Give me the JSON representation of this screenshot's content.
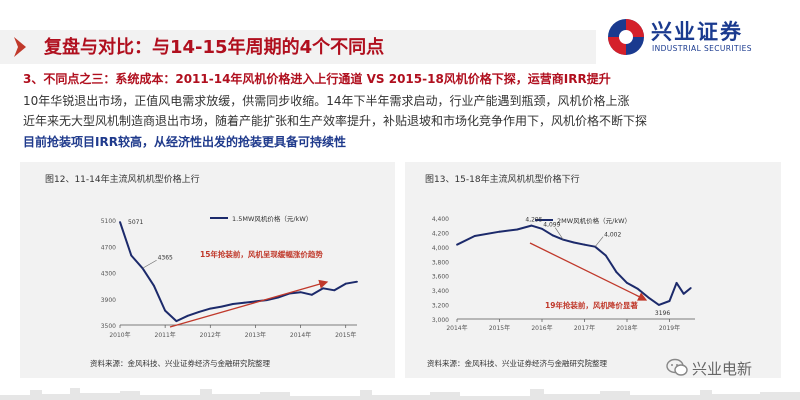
{
  "header": {
    "title": "复盘与对比：与14-15年周期的4个不同点"
  },
  "logo": {
    "name": "兴业证券",
    "english": "INDUSTRIAL SECURITIES"
  },
  "body": {
    "heading": "3、不同点之三：系统成本：2011-14年风机价格进入上行通道 VS 2015-18风机价格下探，运营商IRR提升",
    "line1": "10年华锐退出市场，正值风电需求放缓，供需同步收缩。14年下半年需求启动，行业产能遇到瓶颈，风机价格上涨",
    "line2": "近年来无大型风机制造商退出市场，随着产能扩张和生产效率提升，补贴退坡和市场化竞争作用下，风机价格不断下探",
    "line3": "目前抢装项目IRR较高，从经济性出发的抢装更具备可持续性"
  },
  "watermark": {
    "name": "兴业电新"
  },
  "colors": {
    "brand_red": "#b00f1e",
    "brand_blue": "#1f3a8c",
    "line_navy": "#1c2a6b",
    "annotation_red": "#c0392b",
    "chart_bg": "#f2f2f2"
  },
  "chart_data": [
    {
      "type": "line",
      "title": "图12、11-14年主流风机机型价格上行",
      "source": "资料来源：金风科技、兴业证券经济与金融研究院整理",
      "series": [
        {
          "name": "1.5MW风机价格（元/kW）",
          "x": [
            "2010-01",
            "2010-04",
            "2010-07",
            "2010-10",
            "2011-01",
            "2011-04",
            "2011-07",
            "2011-10",
            "2012-01",
            "2012-04",
            "2012-07",
            "2012-10",
            "2013-01",
            "2013-04",
            "2013-07",
            "2013-10",
            "2014-01",
            "2014-04",
            "2014-07",
            "2014-10",
            "2015-01",
            "2015-04"
          ],
          "values": [
            5071,
            4560,
            4365,
            4100,
            3720,
            3560,
            3640,
            3700,
            3750,
            3780,
            3820,
            3840,
            3860,
            3880,
            3920,
            3980,
            4000,
            3960,
            4060,
            4030,
            4130,
            4160
          ]
        }
      ],
      "xlabels": [
        "2010年",
        "2011年",
        "2012年",
        "2013年",
        "2014年",
        "2015年"
      ],
      "ylabels": [
        "3500",
        "3900",
        "4300",
        "4700",
        "5100"
      ],
      "ylim": [
        3500,
        5300
      ],
      "grid": false,
      "legend": "top",
      "point_labels": [
        {
          "text": "5071",
          "x": "2010-01",
          "y": 5071
        },
        {
          "text": "4365",
          "x": "2010-07",
          "y": 4365
        }
      ],
      "annotation": "15年抢装前，风机呈现缓幅涨价趋势"
    },
    {
      "type": "line",
      "title": "图13、15-18年主流风机机型价格下行",
      "source": "资料来源：金风科技、兴业证券经济与金融研究院整理",
      "series": [
        {
          "name": "2MW风机价格（元/kW）",
          "x": [
            "2014-01",
            "2014-06",
            "2015-01",
            "2015-06",
            "2015-10",
            "2016-01",
            "2016-04",
            "2016-07",
            "2016-10",
            "2017-01",
            "2017-04",
            "2017-07",
            "2017-10",
            "2018-01",
            "2018-04",
            "2018-07",
            "2018-10",
            "2019-01",
            "2019-03",
            "2019-05",
            "2019-07"
          ],
          "values": [
            4030,
            4150,
            4210,
            4240,
            4295,
            4250,
            4160,
            4099,
            4060,
            4030,
            4002,
            3880,
            3650,
            3500,
            3420,
            3300,
            3196,
            3250,
            3500,
            3350,
            3430
          ]
        }
      ],
      "xlabels": [
        "2014年",
        "2015年",
        "2016年",
        "2017年",
        "2018年",
        "2019年"
      ],
      "ylabels": [
        "3,000",
        "3,200",
        "3,400",
        "3,600",
        "3,800",
        "4,000",
        "4,200",
        "4,400"
      ],
      "ylim": [
        3000,
        4400
      ],
      "grid": false,
      "legend": "top",
      "point_labels": [
        {
          "text": "4,295",
          "x": "2015-10",
          "y": 4295
        },
        {
          "text": "4,099",
          "x": "2016-07",
          "y": 4099
        },
        {
          "text": "4,002",
          "x": "2017-04",
          "y": 4002
        },
        {
          "text": "3196",
          "x": "2018-10",
          "y": 3196
        }
      ],
      "annotation": "19年抢装前，风机降价显著"
    }
  ]
}
